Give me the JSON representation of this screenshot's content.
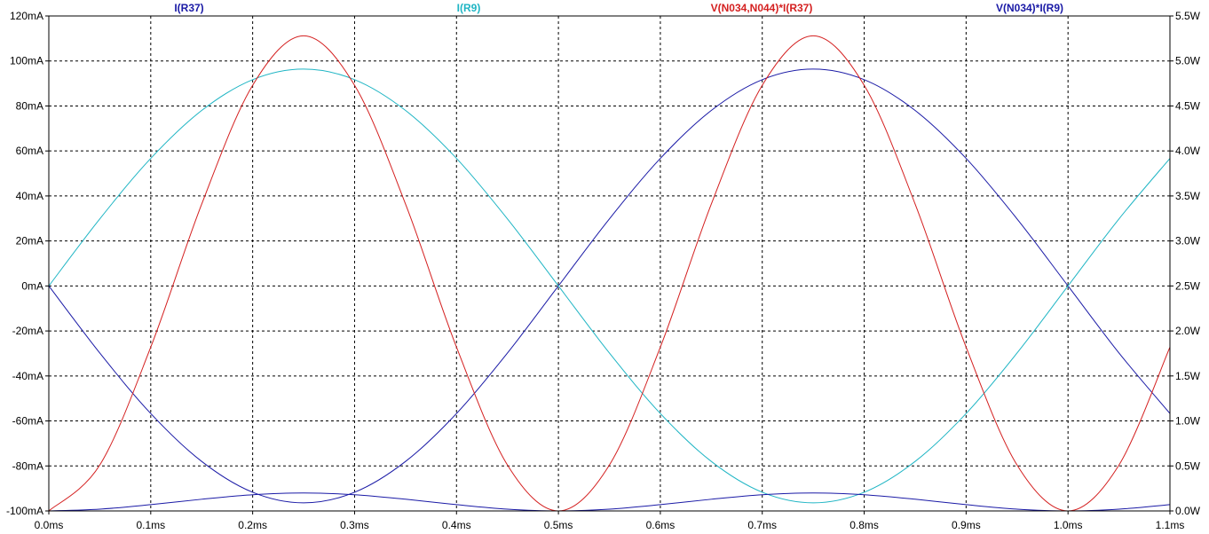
{
  "chart_data": {
    "type": "line",
    "x_range": [
      0,
      1.1
    ],
    "x_ticks": [
      "0.0ms",
      "0.1ms",
      "0.2ms",
      "0.3ms",
      "0.4ms",
      "0.5ms",
      "0.6ms",
      "0.7ms",
      "0.8ms",
      "0.9ms",
      "1.0ms",
      "1.1ms"
    ],
    "x_tick_values": [
      0,
      0.1,
      0.2,
      0.3,
      0.4,
      0.5,
      0.6,
      0.7,
      0.8,
      0.9,
      1.0,
      1.1
    ],
    "y_left_range": [
      -100,
      120
    ],
    "y_left_ticks": [
      "120mA",
      "100mA",
      "80mA",
      "60mA",
      "40mA",
      "20mA",
      "0mA",
      "-20mA",
      "-40mA",
      "-60mA",
      "-80mA",
      "-100mA"
    ],
    "y_left_tick_values": [
      120,
      100,
      80,
      60,
      40,
      20,
      0,
      -20,
      -40,
      -60,
      -80,
      -100
    ],
    "y_right_range": [
      0,
      5.5
    ],
    "y_right_ticks": [
      "5.5W",
      "5.0W",
      "4.5W",
      "4.0W",
      "3.5W",
      "3.0W",
      "2.5W",
      "2.0W",
      "1.5W",
      "1.0W",
      "0.5W",
      "0.0W"
    ],
    "y_right_tick_values": [
      5.5,
      5.0,
      4.5,
      4.0,
      3.5,
      3.0,
      2.5,
      2.0,
      1.5,
      1.0,
      0.5,
      0.0
    ],
    "grid": true,
    "series": [
      {
        "name": "I(R37)",
        "axis": "left",
        "color": "#1a1aa6",
        "x": [
          0,
          0.05,
          0.1,
          0.15,
          0.2,
          0.25,
          0.3,
          0.35,
          0.4,
          0.45,
          0.5,
          0.55,
          0.6,
          0.65,
          0.7,
          0.75,
          0.8,
          0.85,
          0.9,
          0.95,
          1.0,
          1.05,
          1.1
        ],
        "y": [
          0,
          -29.8,
          -56.7,
          -78.0,
          -91.7,
          -96.4,
          -91.7,
          -78.0,
          -56.7,
          -29.8,
          0,
          29.8,
          56.7,
          78.0,
          91.7,
          96.4,
          91.7,
          78.0,
          56.7,
          29.8,
          0,
          -29.8,
          -56.7
        ]
      },
      {
        "name": "I(R9)",
        "axis": "left",
        "color": "#1fb5c4",
        "x": [
          0,
          0.05,
          0.1,
          0.15,
          0.2,
          0.25,
          0.3,
          0.35,
          0.4,
          0.45,
          0.5,
          0.55,
          0.6,
          0.65,
          0.7,
          0.75,
          0.8,
          0.85,
          0.9,
          0.95,
          1.0,
          1.05,
          1.1
        ],
        "y": [
          0,
          29.8,
          56.7,
          78.0,
          91.7,
          96.4,
          91.7,
          78.0,
          56.7,
          29.8,
          0,
          -29.8,
          -56.7,
          -78.0,
          -91.7,
          -96.4,
          -91.7,
          -78.0,
          -56.7,
          -29.8,
          0,
          29.8,
          56.7
        ]
      },
      {
        "name": "V(N034,N044)*I(R37)",
        "axis": "right",
        "color": "#d42020",
        "x": [
          0,
          0.05,
          0.1,
          0.15,
          0.2,
          0.25,
          0.3,
          0.35,
          0.4,
          0.45,
          0.5,
          0.55,
          0.6,
          0.65,
          0.7,
          0.75,
          0.8,
          0.85,
          0.9,
          0.95,
          1.0,
          1.05,
          1.1
        ],
        "y": [
          0,
          0.51,
          1.82,
          3.41,
          4.73,
          5.28,
          4.73,
          3.41,
          1.82,
          0.51,
          0,
          0.51,
          1.82,
          3.41,
          4.73,
          5.28,
          4.73,
          3.41,
          1.82,
          0.51,
          0,
          0.51,
          1.82
        ]
      },
      {
        "name": "V(N034)*I(R9)",
        "axis": "right",
        "color": "#1a1aa6",
        "x": [
          0,
          0.05,
          0.1,
          0.15,
          0.2,
          0.25,
          0.3,
          0.35,
          0.4,
          0.45,
          0.5,
          0.55,
          0.6,
          0.65,
          0.7,
          0.75,
          0.8,
          0.85,
          0.9,
          0.95,
          1.0,
          1.05,
          1.1
        ],
        "y": [
          0,
          0.02,
          0.07,
          0.13,
          0.18,
          0.2,
          0.18,
          0.13,
          0.07,
          0.02,
          0,
          0.02,
          0.07,
          0.13,
          0.18,
          0.2,
          0.18,
          0.13,
          0.07,
          0.02,
          0,
          0.02,
          0.07
        ]
      }
    ]
  }
}
